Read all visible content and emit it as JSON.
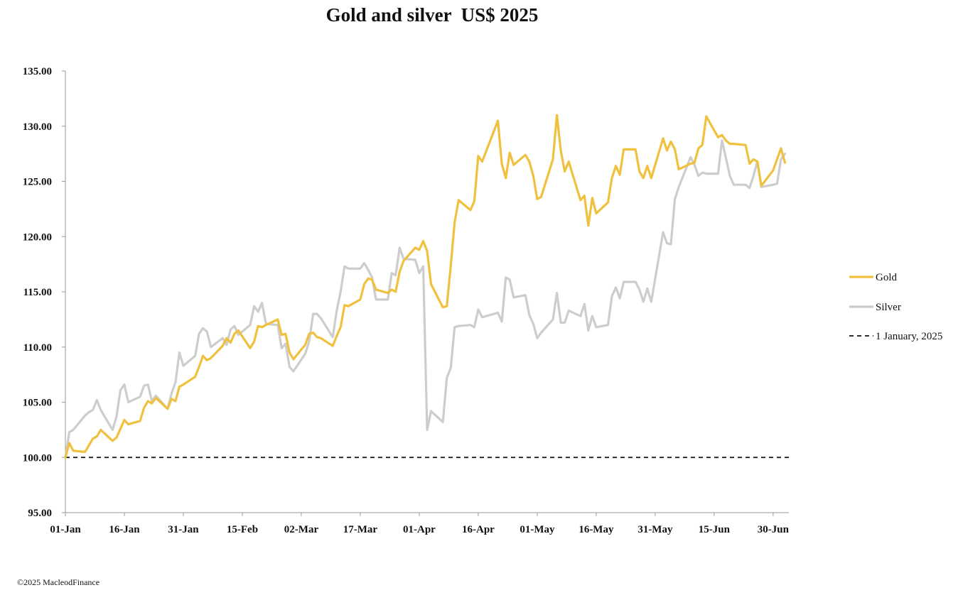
{
  "credit": "©2025 MacleodFinance",
  "chart_data": {
    "type": "line",
    "title": "Gold and silver  US$ 2025",
    "xlabel": "",
    "ylabel": "",
    "x_start": "2025-01-01",
    "x_end": "2025-07-04",
    "x_ticks": [
      "01-Jan",
      "16-Jan",
      "31-Jan",
      "15-Feb",
      "02-Mar",
      "17-Mar",
      "01-Apr",
      "16-Apr",
      "01-May",
      "16-May",
      "31-May",
      "15-Jun",
      "30-Jun"
    ],
    "ylim": [
      95,
      135
    ],
    "y_ticks": [
      "95.00",
      "100.00",
      "105.00",
      "110.00",
      "115.00",
      "120.00",
      "125.00",
      "130.00",
      "135.00"
    ],
    "grid": false,
    "legend_position": "right",
    "baseline": {
      "name": "1 January, 2025",
      "value": 100,
      "color": "#111111",
      "style": "dashed"
    },
    "series": [
      {
        "name": "Gold",
        "color": "#F0C13E",
        "x": [
          "2025-01-01",
          "2025-01-02",
          "2025-01-03",
          "2025-01-06",
          "2025-01-07",
          "2025-01-08",
          "2025-01-09",
          "2025-01-10",
          "2025-01-13",
          "2025-01-14",
          "2025-01-15",
          "2025-01-16",
          "2025-01-17",
          "2025-01-20",
          "2025-01-21",
          "2025-01-22",
          "2025-01-23",
          "2025-01-24",
          "2025-01-27",
          "2025-01-28",
          "2025-01-29",
          "2025-01-30",
          "2025-01-31",
          "2025-02-03",
          "2025-02-04",
          "2025-02-05",
          "2025-02-06",
          "2025-02-07",
          "2025-02-10",
          "2025-02-11",
          "2025-02-12",
          "2025-02-13",
          "2025-02-14",
          "2025-02-17",
          "2025-02-18",
          "2025-02-19",
          "2025-02-20",
          "2025-02-21",
          "2025-02-24",
          "2025-02-25",
          "2025-02-26",
          "2025-02-27",
          "2025-02-28",
          "2025-03-03",
          "2025-03-04",
          "2025-03-05",
          "2025-03-06",
          "2025-03-07",
          "2025-03-10",
          "2025-03-11",
          "2025-03-12",
          "2025-03-13",
          "2025-03-14",
          "2025-03-17",
          "2025-03-18",
          "2025-03-19",
          "2025-03-20",
          "2025-03-21",
          "2025-03-24",
          "2025-03-25",
          "2025-03-26",
          "2025-03-27",
          "2025-03-28",
          "2025-03-31",
          "2025-04-01",
          "2025-04-02",
          "2025-04-03",
          "2025-04-04",
          "2025-04-07",
          "2025-04-08",
          "2025-04-09",
          "2025-04-10",
          "2025-04-11",
          "2025-04-14",
          "2025-04-15",
          "2025-04-16",
          "2025-04-17",
          "2025-04-21",
          "2025-04-22",
          "2025-04-23",
          "2025-04-24",
          "2025-04-25",
          "2025-04-28",
          "2025-04-29",
          "2025-04-30",
          "2025-05-01",
          "2025-05-02",
          "2025-05-05",
          "2025-05-06",
          "2025-05-07",
          "2025-05-08",
          "2025-05-09",
          "2025-05-12",
          "2025-05-13",
          "2025-05-14",
          "2025-05-15",
          "2025-05-16",
          "2025-05-19",
          "2025-05-20",
          "2025-05-21",
          "2025-05-22",
          "2025-05-23",
          "2025-05-26",
          "2025-05-27",
          "2025-05-28",
          "2025-05-29",
          "2025-05-30",
          "2025-06-02",
          "2025-06-03",
          "2025-06-04",
          "2025-06-05",
          "2025-06-06",
          "2025-06-09",
          "2025-06-10",
          "2025-06-11",
          "2025-06-12",
          "2025-06-13",
          "2025-06-16",
          "2025-06-17",
          "2025-06-18",
          "2025-06-19",
          "2025-06-20",
          "2025-06-23",
          "2025-06-24",
          "2025-06-25",
          "2025-06-26",
          "2025-06-27",
          "2025-06-30",
          "2025-07-01",
          "2025-07-02",
          "2025-07-03"
        ],
        "values": [
          100.0,
          101.3,
          100.6,
          100.5,
          101.1,
          101.7,
          101.9,
          102.5,
          101.5,
          101.8,
          102.6,
          103.4,
          103.0,
          103.3,
          104.5,
          105.1,
          104.9,
          105.4,
          104.4,
          105.3,
          105.1,
          106.4,
          106.6,
          107.3,
          108.2,
          109.2,
          108.8,
          109.0,
          110.1,
          110.8,
          110.4,
          111.2,
          111.5,
          109.9,
          110.5,
          111.9,
          111.8,
          112.0,
          112.5,
          111.1,
          111.2,
          109.5,
          108.9,
          110.2,
          111.2,
          111.3,
          110.9,
          110.8,
          110.1,
          111.0,
          111.8,
          113.8,
          113.7,
          114.3,
          115.7,
          116.2,
          116.1,
          115.2,
          114.9,
          115.2,
          115.0,
          116.8,
          117.8,
          119.0,
          118.8,
          119.6,
          118.7,
          115.7,
          113.6,
          113.7,
          117.3,
          121.3,
          123.3,
          122.4,
          123.2,
          127.3,
          126.8,
          130.5,
          126.6,
          125.3,
          127.6,
          126.5,
          127.4,
          126.8,
          125.5,
          123.4,
          123.6,
          127.0,
          131.0,
          127.8,
          125.9,
          126.8,
          123.3,
          123.7,
          121.0,
          123.5,
          122.1,
          123.1,
          125.3,
          126.4,
          125.6,
          127.9,
          127.9,
          125.9,
          125.3,
          126.4,
          125.3,
          128.9,
          127.8,
          128.6,
          127.9,
          126.1,
          126.6,
          126.7,
          128.0,
          128.3,
          130.9,
          129.0,
          129.2,
          128.7,
          128.4,
          128.4,
          128.3,
          126.6,
          127.0,
          126.8,
          124.6,
          126.0,
          127.0,
          128.0,
          126.7
        ]
      },
      {
        "name": "Silver",
        "color": "#CDCDCD",
        "x": [
          "2025-01-01",
          "2025-01-02",
          "2025-01-03",
          "2025-01-06",
          "2025-01-07",
          "2025-01-08",
          "2025-01-09",
          "2025-01-10",
          "2025-01-13",
          "2025-01-14",
          "2025-01-15",
          "2025-01-16",
          "2025-01-17",
          "2025-01-20",
          "2025-01-21",
          "2025-01-22",
          "2025-01-23",
          "2025-01-24",
          "2025-01-27",
          "2025-01-28",
          "2025-01-29",
          "2025-01-30",
          "2025-01-31",
          "2025-02-03",
          "2025-02-04",
          "2025-02-05",
          "2025-02-06",
          "2025-02-07",
          "2025-02-10",
          "2025-02-11",
          "2025-02-12",
          "2025-02-13",
          "2025-02-14",
          "2025-02-17",
          "2025-02-18",
          "2025-02-19",
          "2025-02-20",
          "2025-02-21",
          "2025-02-24",
          "2025-02-25",
          "2025-02-26",
          "2025-02-27",
          "2025-02-28",
          "2025-03-03",
          "2025-03-04",
          "2025-03-05",
          "2025-03-06",
          "2025-03-07",
          "2025-03-10",
          "2025-03-11",
          "2025-03-12",
          "2025-03-13",
          "2025-03-14",
          "2025-03-17",
          "2025-03-18",
          "2025-03-19",
          "2025-03-20",
          "2025-03-21",
          "2025-03-24",
          "2025-03-25",
          "2025-03-26",
          "2025-03-27",
          "2025-03-28",
          "2025-03-31",
          "2025-04-01",
          "2025-04-02",
          "2025-04-03",
          "2025-04-04",
          "2025-04-07",
          "2025-04-08",
          "2025-04-09",
          "2025-04-10",
          "2025-04-11",
          "2025-04-14",
          "2025-04-15",
          "2025-04-16",
          "2025-04-17",
          "2025-04-21",
          "2025-04-22",
          "2025-04-23",
          "2025-04-24",
          "2025-04-25",
          "2025-04-28",
          "2025-04-29",
          "2025-04-30",
          "2025-05-01",
          "2025-05-02",
          "2025-05-05",
          "2025-05-06",
          "2025-05-07",
          "2025-05-08",
          "2025-05-09",
          "2025-05-12",
          "2025-05-13",
          "2025-05-14",
          "2025-05-15",
          "2025-05-16",
          "2025-05-19",
          "2025-05-20",
          "2025-05-21",
          "2025-05-22",
          "2025-05-23",
          "2025-05-26",
          "2025-05-27",
          "2025-05-28",
          "2025-05-29",
          "2025-05-30",
          "2025-06-02",
          "2025-06-03",
          "2025-06-04",
          "2025-06-05",
          "2025-06-06",
          "2025-06-09",
          "2025-06-10",
          "2025-06-11",
          "2025-06-12",
          "2025-06-13",
          "2025-06-16",
          "2025-06-17",
          "2025-06-18",
          "2025-06-19",
          "2025-06-20",
          "2025-06-23",
          "2025-06-24",
          "2025-06-25",
          "2025-06-26",
          "2025-06-27",
          "2025-06-30",
          "2025-07-01",
          "2025-07-02",
          "2025-07-03"
        ],
        "values": [
          100.0,
          102.3,
          102.5,
          103.8,
          104.1,
          104.3,
          105.2,
          104.3,
          102.5,
          103.7,
          106.1,
          106.6,
          105.0,
          105.5,
          106.5,
          106.6,
          105.1,
          105.6,
          104.4,
          105.8,
          106.8,
          109.5,
          108.3,
          109.2,
          111.2,
          111.7,
          111.4,
          110.0,
          110.8,
          110.2,
          111.6,
          111.9,
          111.1,
          112.0,
          113.7,
          113.2,
          114.0,
          112.1,
          112.0,
          109.9,
          110.3,
          108.2,
          107.8,
          109.4,
          110.5,
          113.0,
          113.0,
          112.6,
          110.9,
          113.3,
          115.0,
          117.3,
          117.1,
          117.1,
          117.6,
          117.0,
          116.3,
          114.3,
          114.3,
          116.7,
          116.5,
          119.0,
          118.0,
          117.9,
          116.7,
          117.3,
          102.5,
          104.2,
          103.2,
          107.2,
          108.1,
          111.8,
          111.9,
          112.0,
          111.8,
          113.4,
          112.7,
          113.1,
          112.3,
          116.3,
          116.1,
          114.5,
          114.7,
          112.9,
          112.1,
          110.8,
          111.3,
          112.5,
          114.9,
          112.2,
          112.2,
          113.3,
          112.8,
          113.9,
          111.5,
          112.8,
          111.8,
          112.0,
          114.6,
          115.4,
          114.4,
          115.9,
          115.9,
          115.2,
          114.1,
          115.3,
          114.1,
          120.4,
          119.4,
          119.3,
          123.4,
          124.5,
          127.2,
          126.5,
          125.5,
          125.8,
          125.7,
          125.7,
          128.7,
          127.1,
          125.5,
          124.7,
          124.7,
          124.4,
          125.5,
          126.8,
          124.5,
          124.7,
          124.8,
          127.0,
          127.5
        ]
      }
    ]
  }
}
